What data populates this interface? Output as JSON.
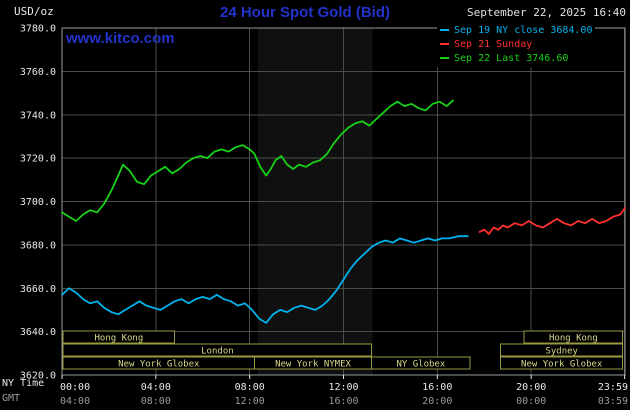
{
  "header": {
    "unit_label": "USD/oz",
    "title": "24 Hour Spot Gold (Bid)",
    "datetime": "September 22, 2025 16:40",
    "watermark": "www.kitco.com"
  },
  "legend": {
    "items": [
      {
        "label": "Sep 19 NY close 3684.00",
        "color": "#00b2ee"
      },
      {
        "label": "Sep 21 Sunday",
        "color": "#ff3030"
      },
      {
        "label": "Sep 22 Last 3746.60",
        "color": "#17d117"
      }
    ]
  },
  "colors": {
    "accent_blue": "#2233cc",
    "grid": "#465046",
    "plot_border": "#9a9a9a",
    "axis_text": "#e8e8e8",
    "gmt_text": "#9b9b9b",
    "session_border": "#99993f",
    "session_text": "#d8d88a",
    "band": "rgba(210,210,210,0.08)",
    "background": "#000000"
  },
  "chart_data": {
    "type": "line",
    "title": "24 Hour Spot Gold (Bid)",
    "ylabel": "USD/oz",
    "xlabel": "NY Time",
    "x2label": "GMT",
    "ylim": [
      3620,
      3780
    ],
    "grid": true,
    "legend_position": "top-right",
    "yticks": [
      {
        "value": 3620,
        "label": "3620.0"
      },
      {
        "value": 3640,
        "label": "3640.0"
      },
      {
        "value": 3660,
        "label": "3660.0"
      },
      {
        "value": 3680,
        "label": "3680.0"
      },
      {
        "value": 3700,
        "label": "3700.0"
      },
      {
        "value": 3720,
        "label": "3720.0"
      },
      {
        "value": 3740,
        "label": "3740.0"
      },
      {
        "value": 3760,
        "label": "3760.0"
      },
      {
        "value": 3780,
        "label": "3780.0"
      }
    ],
    "xticks": [
      {
        "hour": 0,
        "ny": "00:00",
        "gmt": "04:00"
      },
      {
        "hour": 4,
        "ny": "04:00",
        "gmt": "08:00"
      },
      {
        "hour": 8,
        "ny": "08:00",
        "gmt": "12:00"
      },
      {
        "hour": 12,
        "ny": "12:00",
        "gmt": "16:00"
      },
      {
        "hour": 16,
        "ny": "16:00",
        "gmt": "20:00"
      },
      {
        "hour": 20,
        "ny": "20:00",
        "gmt": "00:00"
      },
      {
        "hour": 23.983,
        "ny": "23:59",
        "gmt": "03:59"
      }
    ],
    "nymex_band": {
      "start": 8.35,
      "end": 13.25
    },
    "sessions": [
      {
        "row": 0,
        "label": "Hong Kong",
        "start": 0.05,
        "end": 4.8
      },
      {
        "row": 0,
        "label": "Hong Kong",
        "start": 19.7,
        "end": 23.9
      },
      {
        "row": 1,
        "label": "London",
        "start": 0.05,
        "end": 13.2
      },
      {
        "row": 1,
        "label": "Sydney",
        "start": 18.7,
        "end": 23.9
      },
      {
        "row": 2,
        "label": "New York Globex",
        "start": 0.05,
        "end": 8.2
      },
      {
        "row": 2,
        "label": "New York NYMEX",
        "start": 8.2,
        "end": 13.2
      },
      {
        "row": 2,
        "label": "NY Globex",
        "start": 13.2,
        "end": 17.4
      },
      {
        "row": 2,
        "label": "New York Globex",
        "start": 18.7,
        "end": 23.9
      }
    ],
    "series": [
      {
        "name": "Sep 19 NY close",
        "color": "#00b2ee",
        "points": [
          [
            0,
            3657
          ],
          [
            0.3,
            3660
          ],
          [
            0.6,
            3658
          ],
          [
            0.9,
            3655
          ],
          [
            1.2,
            3653
          ],
          [
            1.5,
            3654
          ],
          [
            1.8,
            3651
          ],
          [
            2.1,
            3649
          ],
          [
            2.4,
            3648
          ],
          [
            2.7,
            3650
          ],
          [
            3.0,
            3652
          ],
          [
            3.3,
            3654
          ],
          [
            3.6,
            3652
          ],
          [
            3.9,
            3651
          ],
          [
            4.2,
            3650
          ],
          [
            4.5,
            3652
          ],
          [
            4.8,
            3654
          ],
          [
            5.1,
            3655
          ],
          [
            5.4,
            3653
          ],
          [
            5.7,
            3655
          ],
          [
            6.0,
            3656
          ],
          [
            6.3,
            3655
          ],
          [
            6.6,
            3657
          ],
          [
            6.9,
            3655
          ],
          [
            7.2,
            3654
          ],
          [
            7.5,
            3652
          ],
          [
            7.8,
            3653
          ],
          [
            8.1,
            3650
          ],
          [
            8.4,
            3646
          ],
          [
            8.7,
            3644
          ],
          [
            9.0,
            3648
          ],
          [
            9.3,
            3650
          ],
          [
            9.6,
            3649
          ],
          [
            9.9,
            3651
          ],
          [
            10.2,
            3652
          ],
          [
            10.5,
            3651
          ],
          [
            10.8,
            3650
          ],
          [
            11.1,
            3652
          ],
          [
            11.4,
            3655
          ],
          [
            11.7,
            3659
          ],
          [
            12.0,
            3664
          ],
          [
            12.3,
            3669
          ],
          [
            12.6,
            3673
          ],
          [
            12.9,
            3676
          ],
          [
            13.2,
            3679
          ],
          [
            13.5,
            3681
          ],
          [
            13.8,
            3682
          ],
          [
            14.1,
            3681
          ],
          [
            14.4,
            3683
          ],
          [
            14.7,
            3682
          ],
          [
            15.0,
            3681
          ],
          [
            15.3,
            3682
          ],
          [
            15.6,
            3683
          ],
          [
            15.9,
            3682
          ],
          [
            16.2,
            3683
          ],
          [
            16.5,
            3683
          ],
          [
            16.9,
            3684
          ],
          [
            17.3,
            3684
          ]
        ]
      },
      {
        "name": "Sep 21 Sunday",
        "color": "#ff3030",
        "points": [
          [
            17.8,
            3686
          ],
          [
            18.0,
            3687
          ],
          [
            18.2,
            3685
          ],
          [
            18.4,
            3688
          ],
          [
            18.6,
            3687
          ],
          [
            18.8,
            3689
          ],
          [
            19.0,
            3688
          ],
          [
            19.3,
            3690
          ],
          [
            19.6,
            3689
          ],
          [
            19.9,
            3691
          ],
          [
            20.2,
            3689
          ],
          [
            20.5,
            3688
          ],
          [
            20.8,
            3690
          ],
          [
            21.1,
            3692
          ],
          [
            21.4,
            3690
          ],
          [
            21.7,
            3689
          ],
          [
            22.0,
            3691
          ],
          [
            22.3,
            3690
          ],
          [
            22.6,
            3692
          ],
          [
            22.9,
            3690
          ],
          [
            23.2,
            3691
          ],
          [
            23.5,
            3693
          ],
          [
            23.8,
            3694
          ],
          [
            24.0,
            3697
          ]
        ]
      },
      {
        "name": "Sep 22 Last",
        "color": "#17d117",
        "points": [
          [
            0,
            3695
          ],
          [
            0.3,
            3693
          ],
          [
            0.6,
            3691
          ],
          [
            0.9,
            3694
          ],
          [
            1.2,
            3696
          ],
          [
            1.5,
            3695
          ],
          [
            1.8,
            3699
          ],
          [
            2.1,
            3705
          ],
          [
            2.4,
            3712
          ],
          [
            2.6,
            3717
          ],
          [
            2.9,
            3714
          ],
          [
            3.2,
            3709
          ],
          [
            3.5,
            3708
          ],
          [
            3.8,
            3712
          ],
          [
            4.1,
            3714
          ],
          [
            4.4,
            3716
          ],
          [
            4.7,
            3713
          ],
          [
            5.0,
            3715
          ],
          [
            5.3,
            3718
          ],
          [
            5.6,
            3720
          ],
          [
            5.9,
            3721
          ],
          [
            6.2,
            3720
          ],
          [
            6.5,
            3723
          ],
          [
            6.8,
            3724
          ],
          [
            7.1,
            3723
          ],
          [
            7.4,
            3725
          ],
          [
            7.7,
            3726
          ],
          [
            8.0,
            3724
          ],
          [
            8.2,
            3722
          ],
          [
            8.45,
            3716
          ],
          [
            8.7,
            3712
          ],
          [
            8.9,
            3715
          ],
          [
            9.1,
            3719
          ],
          [
            9.35,
            3721
          ],
          [
            9.6,
            3717
          ],
          [
            9.85,
            3715
          ],
          [
            10.1,
            3717
          ],
          [
            10.4,
            3716
          ],
          [
            10.7,
            3718
          ],
          [
            11.0,
            3719
          ],
          [
            11.3,
            3722
          ],
          [
            11.6,
            3727
          ],
          [
            11.9,
            3731
          ],
          [
            12.2,
            3734
          ],
          [
            12.5,
            3736
          ],
          [
            12.8,
            3737
          ],
          [
            13.1,
            3735
          ],
          [
            13.4,
            3738
          ],
          [
            13.7,
            3741
          ],
          [
            14.0,
            3744
          ],
          [
            14.3,
            3746
          ],
          [
            14.6,
            3744
          ],
          [
            14.9,
            3745
          ],
          [
            15.2,
            3743
          ],
          [
            15.5,
            3742
          ],
          [
            15.8,
            3745
          ],
          [
            16.1,
            3746
          ],
          [
            16.4,
            3744
          ],
          [
            16.67,
            3746.6
          ]
        ]
      }
    ]
  }
}
